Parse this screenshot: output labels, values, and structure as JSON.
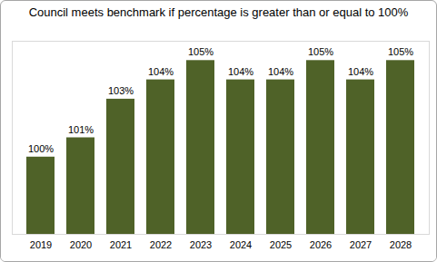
{
  "chart_data": {
    "type": "bar",
    "title": "Council meets benchmark if percentage is greater than or equal to 100%",
    "categories": [
      "2019",
      "2020",
      "2021",
      "2022",
      "2023",
      "2024",
      "2025",
      "2026",
      "2027",
      "2028"
    ],
    "values": [
      100,
      101,
      103,
      104,
      105,
      104,
      104,
      105,
      104,
      105
    ],
    "value_labels": [
      "100%",
      "101%",
      "103%",
      "104%",
      "105%",
      "104%",
      "104%",
      "105%",
      "104%",
      "105%"
    ],
    "color": "#4f6228",
    "ylim": [
      96,
      106
    ],
    "yticks": [],
    "grid": false,
    "data_labels": true,
    "tick_labels": "x"
  }
}
